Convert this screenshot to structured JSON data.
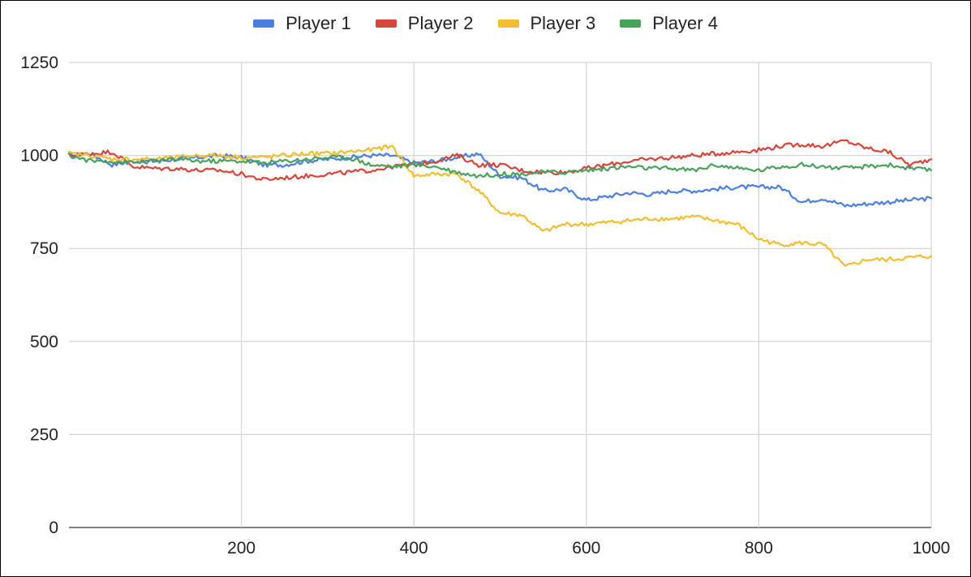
{
  "chart_data": {
    "type": "line",
    "title": "",
    "xlabel": "",
    "ylabel": "",
    "xlim": [
      0,
      1000
    ],
    "ylim": [
      0,
      1250
    ],
    "x_ticks": [
      200,
      400,
      600,
      800,
      1000
    ],
    "y_ticks": [
      0,
      250,
      500,
      750,
      1000,
      1250
    ],
    "grid": true,
    "legend_position": "top-center",
    "x": [
      0,
      25,
      50,
      75,
      100,
      125,
      150,
      175,
      200,
      225,
      250,
      275,
      300,
      325,
      350,
      375,
      400,
      425,
      450,
      475,
      500,
      525,
      550,
      575,
      600,
      625,
      650,
      675,
      700,
      725,
      750,
      775,
      800,
      825,
      850,
      875,
      900,
      925,
      950,
      975,
      1000
    ],
    "series": [
      {
        "name": "Player 1",
        "color": "#4a7fe0",
        "values": [
          1000,
          1005,
          975,
          985,
          985,
          990,
          995,
          1000,
          995,
          975,
          975,
          985,
          990,
          995,
          1000,
          1000,
          980,
          985,
          995,
          1005,
          945,
          940,
          905,
          910,
          880,
          890,
          900,
          895,
          905,
          905,
          910,
          915,
          915,
          915,
          875,
          885,
          865,
          870,
          875,
          880,
          885
        ]
      },
      {
        "name": "Player 2",
        "color": "#d5453a",
        "values": [
          1000,
          1005,
          1010,
          970,
          965,
          965,
          960,
          960,
          950,
          935,
          940,
          945,
          950,
          955,
          960,
          970,
          975,
          985,
          1000,
          975,
          975,
          960,
          955,
          955,
          965,
          975,
          985,
          990,
          995,
          1000,
          1005,
          1010,
          1015,
          1025,
          1030,
          1025,
          1040,
          1020,
          1010,
          975,
          990
        ]
      },
      {
        "name": "Player 3",
        "color": "#f2bd2f",
        "values": [
          1005,
          1000,
          990,
          990,
          990,
          995,
          1000,
          1000,
          995,
          995,
          1000,
          1005,
          1005,
          1010,
          1015,
          1025,
          945,
          950,
          950,
          905,
          845,
          840,
          795,
          815,
          815,
          820,
          825,
          830,
          830,
          835,
          825,
          815,
          775,
          760,
          765,
          760,
          700,
          720,
          720,
          725,
          730
        ]
      },
      {
        "name": "Player 4",
        "color": "#49a25a",
        "values": [
          1000,
          985,
          985,
          980,
          985,
          990,
          985,
          985,
          985,
          980,
          985,
          990,
          995,
          995,
          975,
          970,
          975,
          970,
          955,
          945,
          950,
          950,
          955,
          955,
          960,
          965,
          970,
          965,
          965,
          960,
          975,
          965,
          960,
          970,
          975,
          970,
          965,
          970,
          975,
          965,
          960
        ]
      }
    ]
  }
}
